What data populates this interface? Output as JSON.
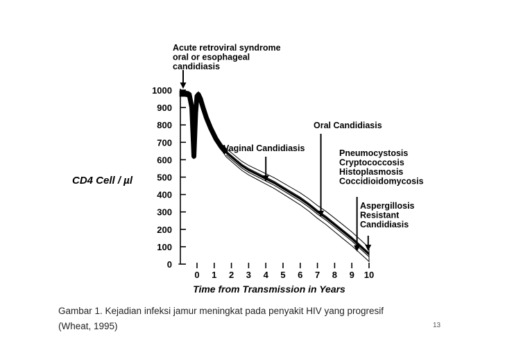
{
  "chart_data": {
    "type": "line",
    "title": "",
    "xlabel": "Time from Transmission in Years",
    "ylabel": "CD4 Cell / µl",
    "xlim": [
      -1,
      10.2
    ],
    "ylim": [
      0,
      1000
    ],
    "x_ticks": [
      "0",
      "1",
      "2",
      "3",
      "4",
      "5",
      "6",
      "7",
      "8",
      "9",
      "10"
    ],
    "y_ticks": [
      "0",
      "100",
      "200",
      "300",
      "400",
      "500",
      "600",
      "700",
      "800",
      "900",
      "1000"
    ],
    "series": [
      {
        "x": [
          -1.0,
          -0.7,
          -0.45,
          -0.3,
          -0.18,
          -0.08,
          0.0,
          0.08,
          0.2,
          0.35,
          0.55,
          0.8,
          1.1,
          1.4,
          1.7,
          2.0,
          2.3,
          2.6,
          3.0,
          3.5,
          4.0,
          4.5,
          5.0,
          5.5,
          6.0,
          6.5,
          7.0,
          7.5,
          8.0,
          8.5,
          9.0,
          9.5,
          10.0
        ],
        "y": [
          980,
          980,
          975,
          900,
          620,
          870,
          965,
          975,
          950,
          900,
          840,
          780,
          720,
          675,
          640,
          615,
          590,
          565,
          540,
          515,
          490,
          465,
          435,
          405,
          375,
          340,
          300,
          265,
          225,
          185,
          145,
          100,
          55
        ]
      }
    ],
    "annotations": [
      {
        "lines": [
          "Acute retroviral syndrome",
          "oral or esophageal",
          "candidiasis"
        ],
        "x": -0.1,
        "y": 1000
      },
      {
        "lines": [
          "Vaginal Candidiasis"
        ],
        "x": 4.0,
        "y": 460
      },
      {
        "lines": [
          "Oral Candidiasis"
        ],
        "x": 7.2,
        "y": 265
      },
      {
        "lines": [
          "Pneumocystosis",
          "Cryptococcosis",
          "Histoplasmosis",
          "Coccidioidomycosis"
        ],
        "x": 9.3,
        "y": 120
      },
      {
        "lines": [
          "Aspergillosis",
          "Resistant",
          "Candidiasis"
        ],
        "x": 9.9,
        "y": 75
      }
    ],
    "legend": "none",
    "grid": false
  },
  "caption": {
    "line1": "Gambar 1. Kejadian infeksi jamur meningkat pada penyakit HIV yang progresif",
    "line2": "(Wheat, 1995)"
  },
  "slide_number": "13",
  "colors": {
    "ink": "#000000",
    "caption": "#222222",
    "background": "#ffffff"
  }
}
